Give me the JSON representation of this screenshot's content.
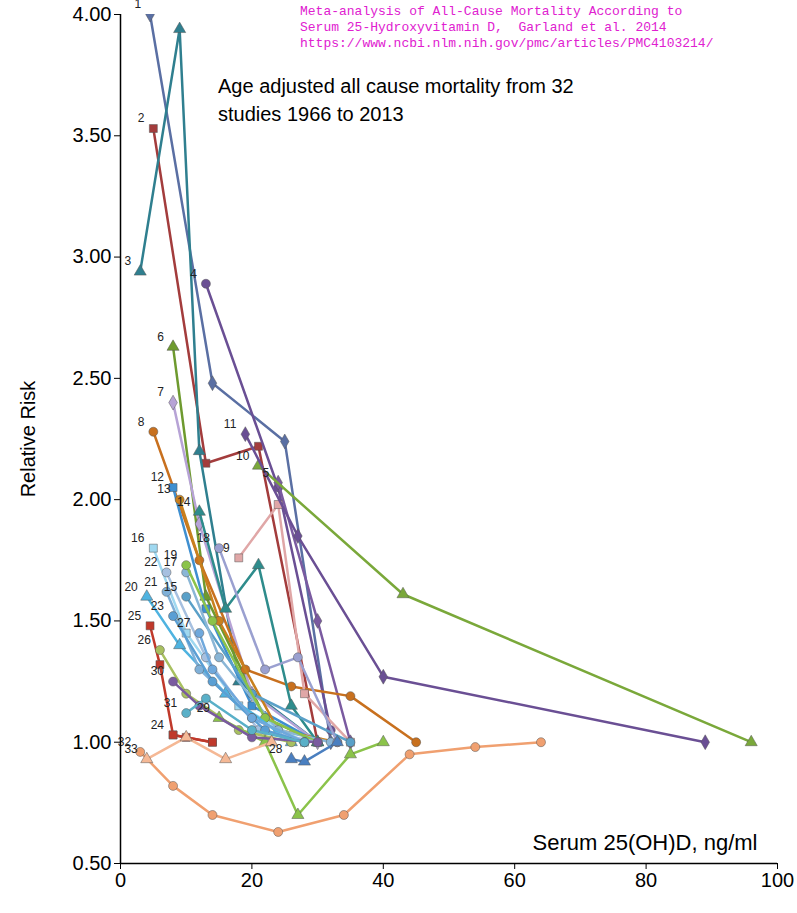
{
  "chart_data": {
    "type": "line",
    "title": "Meta-analysis of All-Cause Mortality According to Serum 25-Hydroxyvitamin D,  Garland et al. 2014",
    "source": "https://www.ncbi.nlm.nih.gov/pmc/articles/PMC4103214/",
    "subtitle": "Age adjusted all cause mortality from 32 studies 1966 to 2013",
    "x_label": "Serum 25(OH)D, ng/ml",
    "y_label": "Relative Risk",
    "xlim": [
      0,
      100
    ],
    "xticks": [
      0,
      20,
      40,
      60,
      80,
      100
    ],
    "ylim": [
      0.5,
      4.0
    ],
    "yticks": [
      {
        "value": 0.5,
        "label": "0.50"
      },
      {
        "value": 1.0,
        "label": "1.00"
      },
      {
        "value": 1.5,
        "label": "1.50"
      },
      {
        "value": 2.0,
        "label": "2.00"
      },
      {
        "value": 2.5,
        "label": "2.50"
      },
      {
        "value": 3.0,
        "label": "3.00"
      },
      {
        "value": 3.5,
        "label": "3.50"
      },
      {
        "value": 4.0,
        "label": "4.00"
      }
    ],
    "grid": false,
    "series": [
      {
        "name": "1",
        "color": "#5a6fa3",
        "marker": "diamond",
        "x": [
          4.5,
          14,
          25,
          32
        ],
        "values": [
          4.0,
          2.48,
          2.24,
          1.0
        ]
      },
      {
        "name": "2",
        "color": "#a33c3c",
        "marker": "square",
        "x": [
          5,
          13,
          21,
          30
        ],
        "values": [
          3.53,
          2.15,
          2.22,
          1.0
        ]
      },
      {
        "name": "3",
        "color": "#2f7f8f",
        "marker": "triangle",
        "x": [
          3,
          9,
          12,
          18,
          30
        ],
        "values": [
          2.94,
          3.94,
          2.2,
          1.25,
          1.0
        ]
      },
      {
        "name": "4",
        "color": "#6a4f94",
        "marker": "circle",
        "x": [
          13,
          24,
          32
        ],
        "values": [
          2.89,
          2.05,
          1.05
        ]
      },
      {
        "name": "5",
        "color": "#7a5aa0",
        "marker": "diamond",
        "x": [
          24,
          30,
          35
        ],
        "values": [
          2.07,
          1.5,
          1.0
        ]
      },
      {
        "name": "6",
        "color": "#6e9a2f",
        "marker": "triangle",
        "x": [
          8,
          13,
          22,
          30
        ],
        "values": [
          2.63,
          1.6,
          1.1,
          1.0
        ]
      },
      {
        "name": "7",
        "color": "#b7a3d6",
        "marker": "diamond",
        "x": [
          8,
          12,
          20,
          30
        ],
        "values": [
          2.4,
          1.9,
          1.2,
          1.0
        ]
      },
      {
        "name": "8",
        "color": "#c8701e",
        "marker": "circle",
        "x": [
          5,
          12,
          19,
          26,
          35,
          45
        ],
        "values": [
          2.28,
          1.75,
          1.3,
          1.23,
          1.19,
          1.0
        ]
      },
      {
        "name": "9",
        "color": "#e0a7a7",
        "marker": "square",
        "x": [
          18,
          24,
          28,
          35
        ],
        "values": [
          1.76,
          1.98,
          1.2,
          1.0
        ]
      },
      {
        "name": "10",
        "color": "#7aa83a",
        "marker": "triangle",
        "x": [
          21,
          43,
          96
        ],
        "values": [
          2.14,
          1.61,
          1.0
        ]
      },
      {
        "name": "11",
        "color": "#6a4f94",
        "marker": "diamond",
        "x": [
          19,
          27,
          40,
          89
        ],
        "values": [
          2.27,
          1.85,
          1.27,
          1.0
        ]
      },
      {
        "name": "12",
        "color": "#3f8fd0",
        "marker": "square",
        "x": [
          8,
          13,
          20,
          30
        ],
        "values": [
          2.05,
          1.55,
          1.15,
          1.0
        ]
      },
      {
        "name": "13",
        "color": "#c8801e",
        "marker": "circle",
        "x": [
          9,
          15,
          24,
          33
        ],
        "values": [
          2.0,
          1.5,
          1.05,
          1.0
        ]
      },
      {
        "name": "14",
        "color": "#2e8c8c",
        "marker": "triangle",
        "x": [
          12,
          16,
          21,
          26,
          30
        ],
        "values": [
          1.95,
          1.55,
          1.73,
          1.15,
          1.0
        ]
      },
      {
        "name": "15",
        "color": "#5aa0c8",
        "marker": "circle",
        "x": [
          10,
          20,
          35
        ],
        "values": [
          1.6,
          1.2,
          1.0
        ]
      },
      {
        "name": "16",
        "color": "#9fd8f0",
        "marker": "square",
        "x": [
          5,
          10,
          18,
          28
        ],
        "values": [
          1.8,
          1.45,
          1.15,
          1.0
        ]
      },
      {
        "name": "17",
        "color": "#8ab6d6",
        "marker": "circle",
        "x": [
          10,
          15,
          24,
          32
        ],
        "values": [
          1.7,
          1.35,
          1.05,
          1.0
        ]
      },
      {
        "name": "18",
        "color": "#9aa0d0",
        "marker": "circle",
        "x": [
          15,
          22,
          27,
          33
        ],
        "values": [
          1.8,
          1.3,
          1.35,
          1.0
        ]
      },
      {
        "name": "19",
        "color": "#8bc34a",
        "marker": "circle",
        "x": [
          10,
          14,
          22,
          30
        ],
        "values": [
          1.73,
          1.5,
          1.1,
          1.0
        ]
      },
      {
        "name": "20",
        "color": "#4fb3e0",
        "marker": "triangle",
        "x": [
          4,
          9,
          16,
          26
        ],
        "values": [
          1.6,
          1.4,
          1.2,
          1.0
        ]
      },
      {
        "name": "21",
        "color": "#7fb0d8",
        "marker": "circle",
        "x": [
          7,
          12,
          20,
          28
        ],
        "values": [
          1.62,
          1.3,
          1.1,
          1.0
        ]
      },
      {
        "name": "22",
        "color": "#a6c0e0",
        "marker": "circle",
        "x": [
          7,
          13,
          21,
          30
        ],
        "values": [
          1.7,
          1.35,
          1.05,
          1.0
        ]
      },
      {
        "name": "23",
        "color": "#5a9fd4",
        "marker": "circle",
        "x": [
          8,
          14,
          22,
          28
        ],
        "values": [
          1.52,
          1.25,
          1.05,
          1.0
        ]
      },
      {
        "name": "24",
        "color": "#c0392b",
        "marker": "square",
        "x": [
          8,
          10,
          14
        ],
        "values": [
          1.03,
          1.02,
          1.0
        ]
      },
      {
        "name": "25",
        "color": "#c0392b",
        "marker": "square",
        "x": [
          4.5,
          6,
          8,
          14
        ],
        "values": [
          1.48,
          1.32,
          1.03,
          1.0
        ]
      },
      {
        "name": "26",
        "color": "#a8c060",
        "marker": "circle",
        "x": [
          6,
          10,
          18,
          26
        ],
        "values": [
          1.38,
          1.2,
          1.05,
          1.0
        ]
      },
      {
        "name": "27",
        "color": "#6fa8dc",
        "marker": "circle",
        "x": [
          12,
          14,
          20,
          28
        ],
        "values": [
          1.45,
          1.3,
          1.1,
          1.0
        ]
      },
      {
        "name": "28",
        "color": "#4a7fc0",
        "marker": "triangle",
        "x": [
          26,
          28,
          33
        ],
        "values": [
          0.93,
          0.92,
          1.0
        ]
      },
      {
        "name": "29",
        "color": "#8bc34a",
        "marker": "triangle",
        "x": [
          15,
          22,
          27,
          35,
          40
        ],
        "values": [
          1.1,
          1.0,
          0.7,
          0.95,
          1.0
        ]
      },
      {
        "name": "30",
        "color": "#7a5aa0",
        "marker": "circle",
        "x": [
          8,
          12,
          20,
          30
        ],
        "values": [
          1.25,
          1.15,
          1.02,
          1.0
        ]
      },
      {
        "name": "31",
        "color": "#5ab0c8",
        "marker": "circle",
        "x": [
          10,
          13,
          20,
          28
        ],
        "values": [
          1.12,
          1.18,
          1.05,
          1.0
        ]
      },
      {
        "name": "32",
        "color": "#f0a070",
        "marker": "circle",
        "x": [
          3,
          8,
          14,
          24,
          34,
          44,
          54,
          64
        ],
        "values": [
          0.96,
          0.82,
          0.7,
          0.63,
          0.7,
          0.95,
          0.98,
          1.0
        ]
      },
      {
        "name": "33",
        "color": "#f5b895",
        "marker": "triangle",
        "x": [
          4,
          10,
          16,
          23
        ],
        "values": [
          0.93,
          1.02,
          0.93,
          1.0
        ]
      }
    ]
  }
}
